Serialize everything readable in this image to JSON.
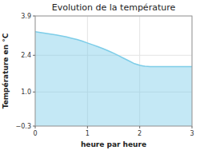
{
  "chart_data": {
    "type": "area",
    "title": "Evolution de la température",
    "xlabel": "heure par heure",
    "ylabel": "Température en °C",
    "x": [
      0,
      0.1,
      0.2,
      0.3,
      0.4,
      0.5,
      0.6,
      0.7,
      0.8,
      0.9,
      1.0,
      1.1,
      1.2,
      1.3,
      1.4,
      1.5,
      1.6,
      1.7,
      1.8,
      1.9,
      2.0,
      2.05,
      2.1,
      2.2,
      2.3,
      2.4,
      2.5,
      2.6,
      2.7,
      2.8,
      2.9,
      3.0
    ],
    "values": [
      3.3,
      3.27,
      3.24,
      3.21,
      3.18,
      3.14,
      3.1,
      3.05,
      3.0,
      2.94,
      2.87,
      2.8,
      2.73,
      2.65,
      2.57,
      2.48,
      2.38,
      2.28,
      2.18,
      2.08,
      2.02,
      2.0,
      1.98,
      1.97,
      1.97,
      1.97,
      1.97,
      1.97,
      1.97,
      1.97,
      1.97,
      1.97
    ],
    "color": "#7dcde8",
    "xlim": [
      0,
      3
    ],
    "ylim": [
      -0.3,
      3.9
    ],
    "xticks": [
      0,
      1,
      2,
      3
    ],
    "yticks": [
      {
        "value": -0.3,
        "label": "−0.3"
      },
      {
        "value": 1.0,
        "label": "1.0"
      },
      {
        "value": 2.4,
        "label": "2.4"
      },
      {
        "value": 3.9,
        "label": "3.9"
      }
    ],
    "grid": true
  }
}
